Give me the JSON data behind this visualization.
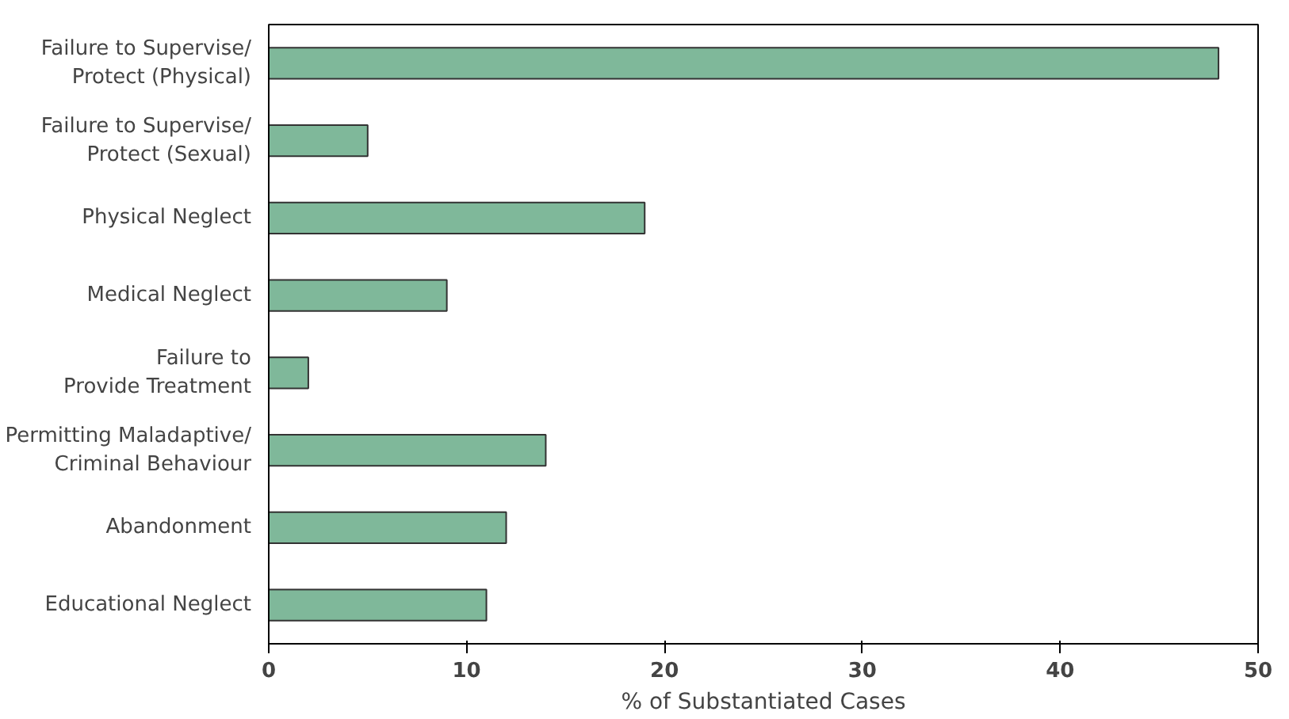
{
  "chart_data": {
    "type": "bar",
    "orientation": "horizontal",
    "xlabel": "% of Substantiated Cases",
    "categories": [
      "Failure to Supervise/\nProtect (Physical)",
      "Failure to Supervise/\nProtect (Sexual)",
      "Physical Neglect",
      "Medical Neglect",
      "Failure to\nProvide Treatment",
      "Permitting Maladaptive/\nCriminal Behaviour",
      "Abandonment",
      "Educational Neglect"
    ],
    "values": [
      48,
      5,
      19,
      9,
      2,
      14,
      12,
      11
    ],
    "color": "#7fb89a",
    "xlim": [
      0,
      50
    ],
    "xticks": [
      0,
      10,
      20,
      30,
      40,
      50
    ],
    "grid": false
  }
}
